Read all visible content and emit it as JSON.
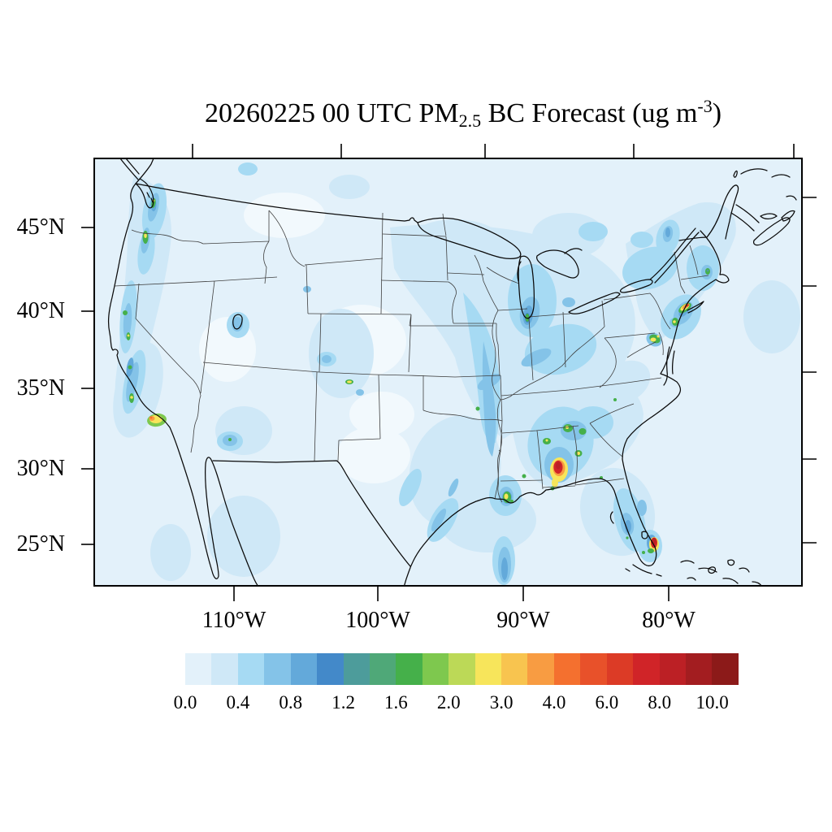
{
  "title": {
    "prefix": "20260225 00 UTC PM",
    "subscript": "2.5",
    "middle": " BC Forecast (ug m",
    "superscript": "-3",
    "suffix": ")"
  },
  "chart_data": {
    "type": "heatmap",
    "title": "20260225 00 UTC PM2.5 BC Forecast (ug m-3)",
    "variable": "PM2.5 black carbon surface concentration forecast",
    "units": "ug m-3",
    "region": "Continental United States (Lambert conformal map)",
    "grid": "off",
    "x_axis": {
      "ticks": [
        "110°W",
        "100°W",
        "90°W",
        "80°W"
      ]
    },
    "y_axis": {
      "ticks": [
        "45°N",
        "40°N",
        "35°N",
        "30°N",
        "25°N"
      ]
    },
    "color_scale": {
      "orientation": "horizontal bottom",
      "levels": [
        0.0,
        0.2,
        0.4,
        0.6,
        0.8,
        1.0,
        1.2,
        1.4,
        1.6,
        1.8,
        2.0,
        2.5,
        3.0,
        3.5,
        4.0,
        5.0,
        6.0,
        7.0,
        8.0,
        9.0,
        10.0
      ],
      "tick_labels": [
        "0.0",
        "0.4",
        "0.8",
        "1.2",
        "1.6",
        "2.0",
        "3.0",
        "4.0",
        "6.0",
        "8.0",
        "10.0"
      ],
      "colors": [
        "#e3f1fa",
        "#cfe8f7",
        "#a6daf3",
        "#84c3e8",
        "#63a9da",
        "#4389c9",
        "#4d9c9b",
        "#4fa878",
        "#45b04a",
        "#7ec84e",
        "#bcd957",
        "#f7e55b",
        "#f8c44f",
        "#f89c42",
        "#f4702f",
        "#e8512a",
        "#dc3b26",
        "#d02428",
        "#bc2025",
        "#a31d20",
        "#8c1a19"
      ],
      "background_light": "#f2f9fd"
    },
    "notable_maxima": [
      {
        "location": "central Alabama",
        "value_ug_m3": "8-10 (red core)"
      },
      {
        "location": "Miami FL",
        "value_ug_m3": "6-8 (red)"
      },
      {
        "location": "New York City metro",
        "value_ug_m3": "4-6 (orange streak)"
      },
      {
        "location": "Los Angeles basin",
        "value_ug_m3": "3-4 (yellow/orange)"
      },
      {
        "location": "Atlanta GA cluster",
        "value_ug_m3": "2-3 (green/yellow)"
      },
      {
        "location": "Baltimore / Washington",
        "value_ug_m3": "2-3 (green/yellow)"
      },
      {
        "location": "Philadelphia PA",
        "value_ug_m3": "2 (green)"
      },
      {
        "location": "New Orleans LA",
        "value_ug_m3": "2-3 (green/yellow)"
      },
      {
        "location": "Seattle WA & Portland OR",
        "value_ug_m3": "2-3 (green/yellow)"
      },
      {
        "location": "California Central Valley spots",
        "value_ug_m3": "1.6-2.5 (green)"
      },
      {
        "location": "Chicago IL",
        "value_ug_m3": "1.6-2 (dark blue/green)"
      },
      {
        "location": "west Texas point source",
        "value_ug_m3": "2-3 (yellow)"
      },
      {
        "location": "Phoenix AZ",
        "value_ug_m3": "1.4-1.8"
      },
      {
        "location": "Boston MA",
        "value_ug_m3": "1.2-1.6"
      },
      {
        "location": "Montreal QC plume",
        "value_ug_m3": "0.8-1.2"
      },
      {
        "location": "lower Mississippi valley plume",
        "value_ug_m3": "0.6-1.0"
      }
    ],
    "background_level": "0.0-0.4 over most of the domain (pale blue)"
  }
}
